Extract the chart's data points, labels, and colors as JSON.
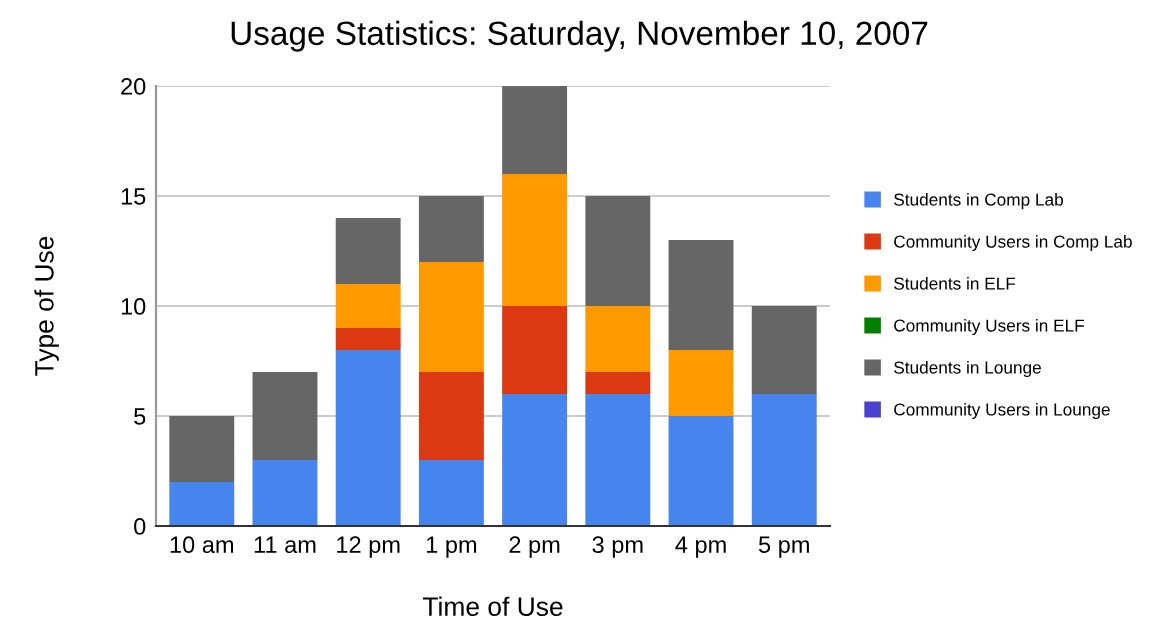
{
  "chart_data": {
    "type": "bar",
    "title": "Usage Statistics: Saturday, November 10, 2007",
    "xlabel": "Time of Use",
    "ylabel": "Type of Use",
    "categories": [
      "10 am",
      "11 am",
      "12 pm",
      "1 pm",
      "2 pm",
      "3 pm",
      "4 pm",
      "5 pm"
    ],
    "stacked": true,
    "ylim": [
      0,
      20
    ],
    "yticks": [
      0,
      5,
      10,
      15,
      20
    ],
    "grid": "y",
    "legend": "right",
    "series": [
      {
        "name": "Students in Comp Lab",
        "color": "#4684ee",
        "values": [
          2,
          3,
          8,
          3,
          6,
          6,
          5,
          6
        ]
      },
      {
        "name": "Community Users in Comp Lab",
        "color": "#dc3912",
        "values": [
          0,
          0,
          1,
          4,
          4,
          1,
          0,
          0
        ]
      },
      {
        "name": "Students in ELF",
        "color": "#ff9900",
        "values": [
          0,
          0,
          2,
          5,
          6,
          3,
          3,
          0
        ]
      },
      {
        "name": "Community Users in ELF",
        "color": "#008000",
        "values": [
          0,
          0,
          0,
          0,
          0,
          0,
          0,
          0
        ]
      },
      {
        "name": "Students in Lounge",
        "color": "#666666",
        "values": [
          3,
          4,
          3,
          3,
          4,
          5,
          5,
          4
        ]
      },
      {
        "name": "Community Users in Lounge",
        "color": "#4942cc",
        "values": [
          0,
          0,
          0,
          0,
          0,
          0,
          0,
          0
        ]
      }
    ]
  }
}
